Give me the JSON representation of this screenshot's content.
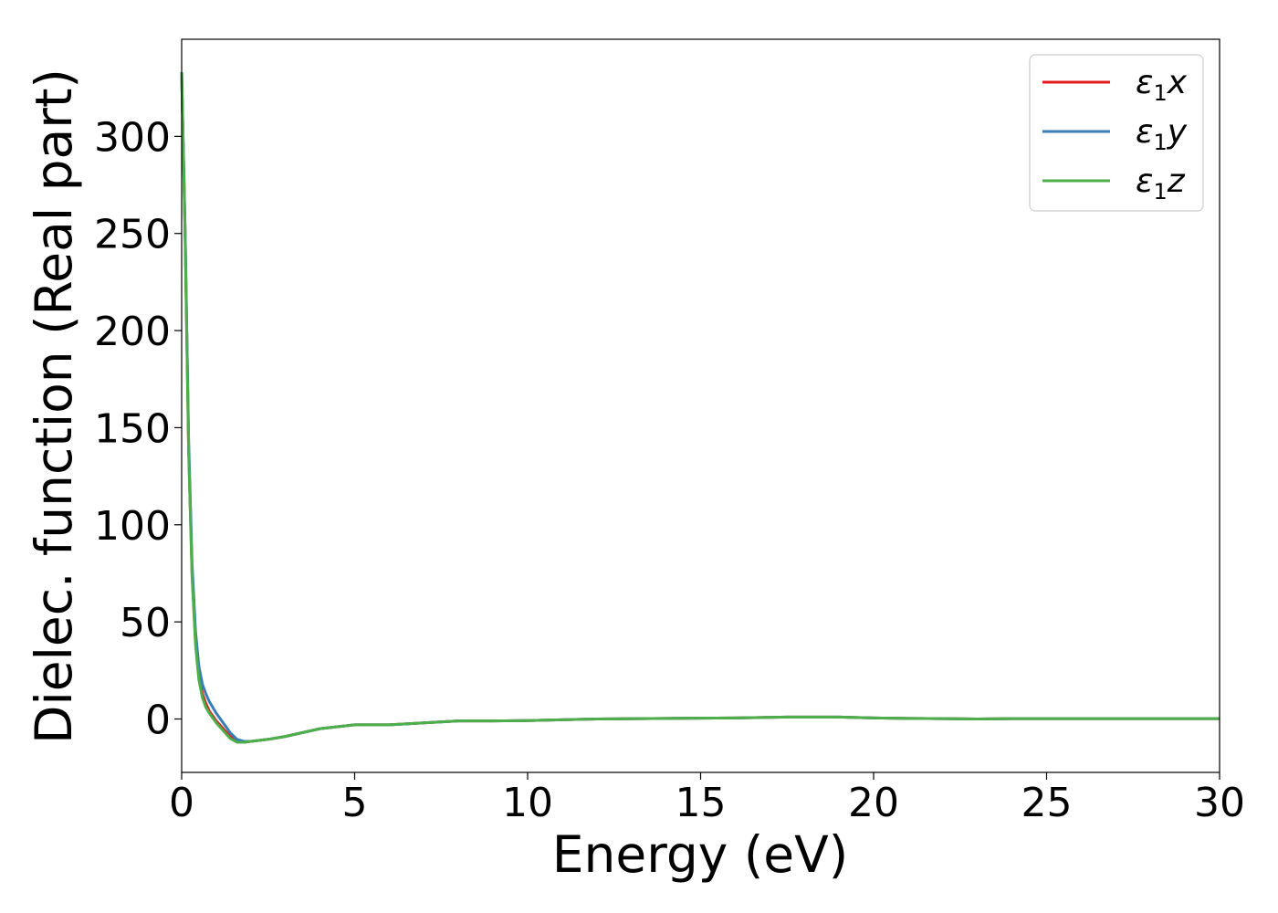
{
  "chart_data": {
    "type": "line",
    "xlabel": "Energy (eV)",
    "ylabel": "Dielec. function (Real part)",
    "xlim": [
      0,
      30
    ],
    "ylim": [
      -27.5,
      350
    ],
    "xticks": [
      0,
      5,
      10,
      15,
      20,
      25,
      30
    ],
    "yticks": [
      0,
      50,
      100,
      150,
      200,
      250,
      300
    ],
    "grid": false,
    "legend_position": "top-right",
    "series": [
      {
        "name": "ε1x",
        "legend_base": "ε",
        "legend_sub": "1",
        "legend_var": "x",
        "color": "#e41a1c",
        "x": [
          0.0,
          0.1,
          0.2,
          0.3,
          0.4,
          0.5,
          0.6,
          0.7,
          0.8,
          1.0,
          1.2,
          1.4,
          1.6,
          1.8,
          2.0,
          2.5,
          3.0,
          3.5,
          4.0,
          4.5,
          5.0,
          6.0,
          7.0,
          8.0,
          9.0,
          10.0,
          12.0,
          14.0,
          16.0,
          17.5,
          19.0,
          20.0,
          21.0,
          22.0,
          23.0,
          24.0,
          25.0,
          27.0,
          30.0
        ],
        "y": [
          333,
          250,
          140,
          75,
          40,
          22,
          13,
          8,
          4,
          -1,
          -5,
          -9,
          -11.5,
          -12,
          -11.5,
          -10.5,
          -9,
          -7,
          -5,
          -4,
          -3,
          -3,
          -2,
          -1,
          -1,
          -0.8,
          0,
          0.3,
          0.5,
          1,
          1,
          0.5,
          0.3,
          0.2,
          0,
          0.2,
          0.2,
          0.2,
          0.2
        ]
      },
      {
        "name": "ε1y",
        "legend_base": "ε",
        "legend_sub": "1",
        "legend_var": "y",
        "color": "#377eb8",
        "x": [
          0.0,
          0.1,
          0.2,
          0.3,
          0.4,
          0.5,
          0.6,
          0.7,
          0.8,
          1.0,
          1.2,
          1.4,
          1.6,
          1.8,
          2.0,
          2.5,
          3.0,
          3.5,
          4.0,
          4.5,
          5.0,
          6.0,
          7.0,
          8.0,
          9.0,
          10.0,
          12.0,
          14.0,
          16.0,
          17.5,
          19.0,
          20.0,
          21.0,
          22.0,
          23.0,
          24.0,
          25.0,
          27.0,
          30.0
        ],
        "y": [
          333,
          252,
          145,
          80,
          45,
          27,
          18,
          13,
          9,
          3,
          -2,
          -7,
          -10.5,
          -11.5,
          -11.5,
          -10.5,
          -9,
          -7,
          -5,
          -4,
          -3,
          -3,
          -2,
          -1,
          -1,
          -0.8,
          0,
          0.3,
          0.5,
          1,
          1,
          0.5,
          0.3,
          0.2,
          0,
          0.2,
          0.2,
          0.2,
          0.2
        ]
      },
      {
        "name": "ε1z",
        "legend_base": "ε",
        "legend_sub": "1",
        "legend_var": "z",
        "color": "#4daf4a",
        "x": [
          0.0,
          0.1,
          0.2,
          0.3,
          0.4,
          0.5,
          0.6,
          0.7,
          0.8,
          1.0,
          1.2,
          1.4,
          1.6,
          1.8,
          2.0,
          2.5,
          3.0,
          3.5,
          4.0,
          4.5,
          5.0,
          6.0,
          7.0,
          8.0,
          9.0,
          10.0,
          12.0,
          14.0,
          16.0,
          17.5,
          19.0,
          20.0,
          21.0,
          22.0,
          23.0,
          24.0,
          25.0,
          27.0,
          30.0
        ],
        "y": [
          333,
          248,
          138,
          73,
          38,
          20,
          11,
          6,
          3,
          -2,
          -6,
          -10,
          -12,
          -12,
          -11.5,
          -10.5,
          -9,
          -7,
          -5,
          -4,
          -3,
          -3,
          -2,
          -1,
          -1,
          -0.8,
          0,
          0.3,
          0.5,
          1,
          1,
          0.5,
          0.3,
          0.2,
          0,
          0.2,
          0.2,
          0.2,
          0.2
        ]
      }
    ]
  }
}
